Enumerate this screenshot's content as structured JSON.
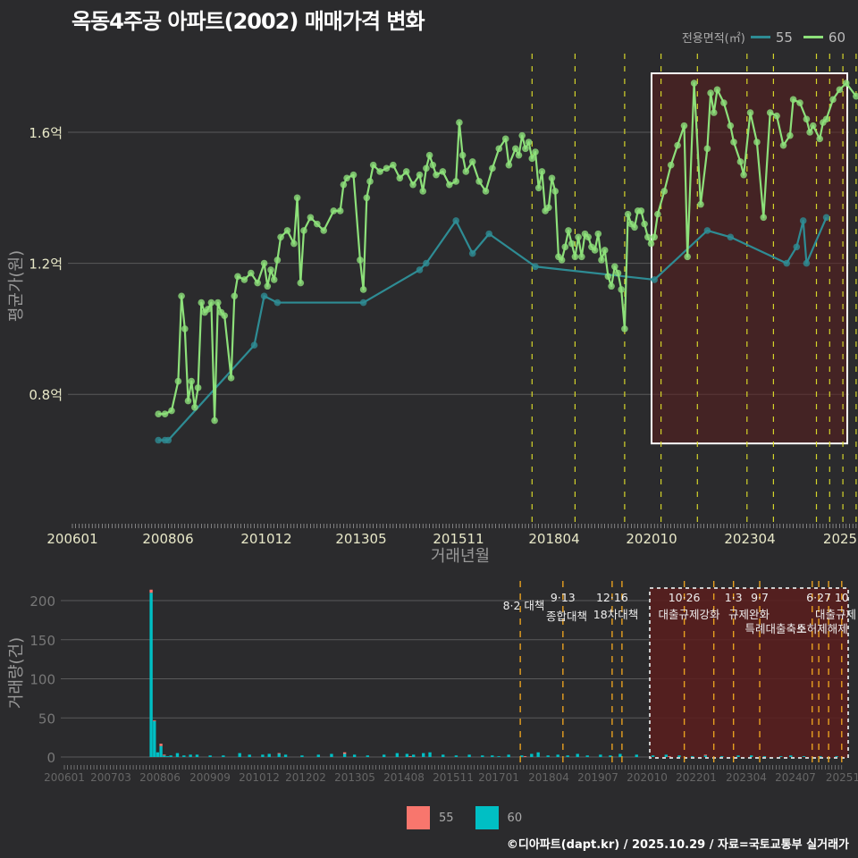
{
  "title": "옥동4주공 아파트(2002) 매매가격 변화",
  "legend_top": {
    "title": "전용면적(㎡)",
    "items": [
      {
        "label": "55",
        "color": "#2e8c94"
      },
      {
        "label": "60",
        "color": "#8de07a"
      }
    ]
  },
  "legend_bottom": {
    "items": [
      {
        "label": "55",
        "color": "#f8766d"
      },
      {
        "label": "60",
        "color": "#00bfc4"
      }
    ]
  },
  "footer": "©디아파트(dapt.kr) / 2025.10.29 / 자료=국토교통부 실거래가",
  "chart_data": [
    {
      "type": "line",
      "title": "옥동4주공 아파트(2002) 매매가격 변화",
      "xlabel": "거래년월",
      "ylabel": "평균가(원)",
      "x_ticks": [
        "200601",
        "200806",
        "201012",
        "201305",
        "201511",
        "201804",
        "202010",
        "202304",
        "2025"
      ],
      "y_ticks": [
        "0.8억",
        "1.2억",
        "1.6억"
      ],
      "y_tick_values": [
        0.8,
        1.2,
        1.6
      ],
      "ylim": [
        0.6,
        1.8
      ],
      "unit": "억원",
      "policy_lines": [
        "201708",
        "201809",
        "201912",
        "202011",
        "202110",
        "202301",
        "202309",
        "202410",
        "202502",
        "202506",
        "202510"
      ],
      "highlight_box": {
        "x_from": "202009",
        "x_to": "202510",
        "y_from": 0.65,
        "y_to": 1.78
      },
      "series": [
        {
          "name": "55",
          "color": "#2e8c94",
          "points": [
            [
              "200803",
              0.66
            ],
            [
              "200805",
              0.66
            ],
            [
              "200806",
              0.66
            ],
            [
              "201008",
              0.95
            ],
            [
              "201011",
              1.1
            ],
            [
              "201103",
              1.08
            ],
            [
              "201305",
              1.08
            ],
            [
              "201410",
              1.18
            ],
            [
              "201412",
              1.2
            ],
            [
              "201509",
              1.33
            ],
            [
              "201602",
              1.23
            ],
            [
              "201607",
              1.29
            ],
            [
              "201709",
              1.19
            ],
            [
              "202009",
              1.15
            ],
            [
              "202201",
              1.3
            ],
            [
              "202208",
              1.28
            ],
            [
              "202401",
              1.2
            ],
            [
              "202404",
              1.25
            ],
            [
              "202406",
              1.33
            ],
            [
              "202407",
              1.2
            ],
            [
              "202501",
              1.34
            ]
          ]
        },
        {
          "name": "60",
          "color": "#8de07a",
          "points": [
            [
              "200803",
              0.74
            ],
            [
              "200805",
              0.74
            ],
            [
              "200807",
              0.75
            ],
            [
              "200809",
              0.84
            ],
            [
              "200810",
              1.1
            ],
            [
              "200811",
              1.0
            ],
            [
              "200812",
              0.78
            ],
            [
              "200901",
              0.84
            ],
            [
              "200902",
              0.76
            ],
            [
              "200903",
              0.82
            ],
            [
              "200904",
              1.08
            ],
            [
              "200905",
              1.05
            ],
            [
              "200906",
              1.06
            ],
            [
              "200907",
              1.08
            ],
            [
              "200908",
              0.72
            ],
            [
              "200909",
              1.08
            ],
            [
              "200910",
              1.05
            ],
            [
              "200911",
              1.04
            ],
            [
              "201001",
              0.85
            ],
            [
              "201002",
              1.1
            ],
            [
              "201003",
              1.16
            ],
            [
              "201005",
              1.15
            ],
            [
              "201007",
              1.17
            ],
            [
              "201009",
              1.14
            ],
            [
              "201011",
              1.2
            ],
            [
              "201012",
              1.13
            ],
            [
              "201101",
              1.18
            ],
            [
              "201102",
              1.15
            ],
            [
              "201103",
              1.21
            ],
            [
              "201104",
              1.28
            ],
            [
              "201106",
              1.3
            ],
            [
              "201108",
              1.26
            ],
            [
              "201109",
              1.4
            ],
            [
              "201110",
              1.14
            ],
            [
              "201111",
              1.3
            ],
            [
              "201201",
              1.34
            ],
            [
              "201203",
              1.32
            ],
            [
              "201205",
              1.3
            ],
            [
              "201208",
              1.36
            ],
            [
              "201210",
              1.36
            ],
            [
              "201211",
              1.44
            ],
            [
              "201212",
              1.46
            ],
            [
              "201302",
              1.47
            ],
            [
              "201304",
              1.21
            ],
            [
              "201305",
              1.12
            ],
            [
              "201306",
              1.4
            ],
            [
              "201307",
              1.45
            ],
            [
              "201308",
              1.5
            ],
            [
              "201310",
              1.48
            ],
            [
              "201312",
              1.49
            ],
            [
              "201402",
              1.5
            ],
            [
              "201404",
              1.46
            ],
            [
              "201406",
              1.48
            ],
            [
              "201408",
              1.44
            ],
            [
              "201410",
              1.47
            ],
            [
              "201411",
              1.42
            ],
            [
              "201412",
              1.49
            ],
            [
              "201501",
              1.53
            ],
            [
              "201502",
              1.5
            ],
            [
              "201503",
              1.47
            ],
            [
              "201505",
              1.48
            ],
            [
              "201507",
              1.44
            ],
            [
              "201509",
              1.45
            ],
            [
              "201510",
              1.63
            ],
            [
              "201511",
              1.53
            ],
            [
              "201512",
              1.48
            ],
            [
              "201602",
              1.51
            ],
            [
              "201604",
              1.45
            ],
            [
              "201606",
              1.42
            ],
            [
              "201608",
              1.49
            ],
            [
              "201610",
              1.55
            ],
            [
              "201612",
              1.58
            ],
            [
              "201701",
              1.5
            ],
            [
              "201703",
              1.55
            ],
            [
              "201704",
              1.53
            ],
            [
              "201705",
              1.59
            ],
            [
              "201706",
              1.55
            ],
            [
              "201707",
              1.57
            ],
            [
              "201708",
              1.52
            ],
            [
              "201709",
              1.54
            ],
            [
              "201710",
              1.43
            ],
            [
              "201711",
              1.48
            ],
            [
              "201712",
              1.36
            ],
            [
              "201801",
              1.37
            ],
            [
              "201802",
              1.46
            ],
            [
              "201803",
              1.42
            ],
            [
              "201804",
              1.22
            ],
            [
              "201805",
              1.21
            ],
            [
              "201806",
              1.25
            ],
            [
              "201807",
              1.3
            ],
            [
              "201808",
              1.26
            ],
            [
              "201809",
              1.22
            ],
            [
              "201810",
              1.28
            ],
            [
              "201811",
              1.22
            ],
            [
              "201812",
              1.29
            ],
            [
              "201901",
              1.28
            ],
            [
              "201902",
              1.25
            ],
            [
              "201903",
              1.24
            ],
            [
              "201904",
              1.29
            ],
            [
              "201905",
              1.21
            ],
            [
              "201906",
              1.24
            ],
            [
              "201907",
              1.16
            ],
            [
              "201908",
              1.13
            ],
            [
              "201909",
              1.19
            ],
            [
              "201910",
              1.17
            ],
            [
              "201911",
              1.12
            ],
            [
              "201912",
              1.0
            ],
            [
              "202001",
              1.35
            ],
            [
              "202002",
              1.32
            ],
            [
              "202003",
              1.31
            ],
            [
              "202004",
              1.36
            ],
            [
              "202005",
              1.36
            ],
            [
              "202006",
              1.32
            ],
            [
              "202007",
              1.28
            ],
            [
              "202008",
              1.26
            ],
            [
              "202009",
              1.28
            ],
            [
              "202010",
              1.35
            ],
            [
              "202012",
              1.42
            ],
            [
              "202102",
              1.5
            ],
            [
              "202104",
              1.56
            ],
            [
              "202106",
              1.62
            ],
            [
              "202107",
              1.22
            ],
            [
              "202109",
              1.75
            ],
            [
              "202111",
              1.38
            ],
            [
              "202201",
              1.55
            ],
            [
              "202202",
              1.72
            ],
            [
              "202203",
              1.66
            ],
            [
              "202204",
              1.73
            ],
            [
              "202206",
              1.69
            ],
            [
              "202208",
              1.62
            ],
            [
              "202209",
              1.57
            ],
            [
              "202211",
              1.51
            ],
            [
              "202212",
              1.47
            ],
            [
              "202302",
              1.66
            ],
            [
              "202304",
              1.57
            ],
            [
              "202306",
              1.34
            ],
            [
              "202308",
              1.66
            ],
            [
              "202310",
              1.65
            ],
            [
              "202312",
              1.56
            ],
            [
              "202402",
              1.59
            ],
            [
              "202403",
              1.7
            ],
            [
              "202405",
              1.69
            ],
            [
              "202407",
              1.64
            ],
            [
              "202408",
              1.6
            ],
            [
              "202409",
              1.62
            ],
            [
              "202411",
              1.58
            ],
            [
              "202412",
              1.63
            ],
            [
              "202501",
              1.64
            ],
            [
              "202503",
              1.7
            ],
            [
              "202505",
              1.73
            ],
            [
              "202507",
              1.75
            ],
            [
              "202510",
              1.71
            ]
          ]
        }
      ]
    },
    {
      "type": "bar",
      "stacked": true,
      "xlabel": "",
      "ylabel": "거래량(건)",
      "x_ticks": [
        "200601",
        "200703",
        "200806",
        "200909",
        "201012",
        "201202",
        "201305",
        "201408",
        "201511",
        "201701",
        "201804",
        "201907",
        "202010",
        "202201",
        "202304",
        "202407",
        "20251"
      ],
      "y_ticks": [
        0,
        50,
        100,
        150,
        200
      ],
      "ylim": [
        0,
        225
      ],
      "policy_events": [
        {
          "date": "201708",
          "label_top": "",
          "label": "8·2 대책"
        },
        {
          "date": "201809",
          "label_top": "9·13",
          "label": "종합대책"
        },
        {
          "date": "201912",
          "label_top": "12·16",
          "label": "18차대책"
        },
        {
          "date": "202003",
          "label_top": "",
          "label": ""
        },
        {
          "date": "202110",
          "label_top": "10·26",
          "label": "대출규제강화"
        },
        {
          "date": "202207",
          "label_top": "",
          "label": ""
        },
        {
          "date": "202301",
          "label_top": "1·3",
          "label": "규제완화"
        },
        {
          "date": "202309",
          "label_top": "9·7",
          "label": "특례대출축소"
        },
        {
          "date": "202501",
          "label_top": "",
          "label": ""
        },
        {
          "date": "202503",
          "label_top": "6·27",
          "label": "대출규제"
        },
        {
          "date": "202506",
          "label_top": "",
          "label": "토허제해제"
        },
        {
          "date": "202510",
          "label_top": "10",
          "label": ""
        }
      ],
      "highlight_box": {
        "x_from": "202009",
        "x_to": "202510"
      },
      "series": [
        {
          "name": "55",
          "color": "#f8766d",
          "values_by_month": {
            "200803": 4,
            "200804": 1,
            "200806": 3,
            "200807": 1,
            "201106": 1,
            "201302": 2,
            "201410": 1,
            "201709": 1,
            "202105": 1,
            "202204": 1
          }
        },
        {
          "name": "60",
          "color": "#00bfc4",
          "values_by_month": {
            "200803": 210,
            "200804": 46,
            "200805": 6,
            "200806": 14,
            "200807": 2,
            "200808": 1,
            "200809": 2,
            "200811": 5,
            "200901": 2,
            "200903": 3,
            "200905": 3,
            "200909": 2,
            "201001": 2,
            "201006": 5,
            "201009": 3,
            "201101": 3,
            "201103": 4,
            "201106": 4,
            "201108": 3,
            "201201": 2,
            "201206": 3,
            "201210": 4,
            "201302": 4,
            "201305": 3,
            "201309": 2,
            "201402": 3,
            "201406": 5,
            "201409": 4,
            "201411": 3,
            "201502": 5,
            "201504": 6,
            "201508": 3,
            "201512": 2,
            "201604": 3,
            "201608": 2,
            "201611": 2,
            "201701": 1,
            "201704": 3,
            "201708": 2,
            "201711": 4,
            "201801": 6,
            "201804": 2,
            "201807": 3,
            "201810": 2,
            "201901": 4,
            "201904": 2,
            "201908": 3,
            "201911": 2,
            "202002": 4,
            "202007": 3,
            "202012": 2,
            "202104": 3,
            "202108": 2,
            "202112": 1,
            "202204": 2,
            "202209": 1,
            "202302": 2,
            "202306": 2,
            "202310": 1,
            "202403": 1,
            "202406": 2,
            "202410": 1,
            "202503": 1,
            "202508": 1
          }
        }
      ]
    }
  ],
  "top_chart": {
    "x_ticks": [
      "200601",
      "200806",
      "201012",
      "201305",
      "201511",
      "201804",
      "202010",
      "202304",
      "2025"
    ],
    "y_ticks": [
      "0.8억",
      "1.2억",
      "1.6억"
    ],
    "xlabel": "거래년월",
    "ylabel": "평균가(원)"
  },
  "bottom_chart": {
    "y_ticks": [
      "0",
      "50",
      "100",
      "150",
      "200"
    ],
    "ylabel": "거래량(건)"
  }
}
